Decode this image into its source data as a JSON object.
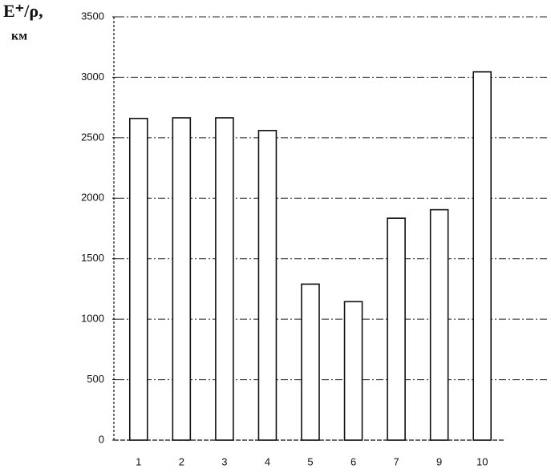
{
  "chart_data": {
    "type": "bar",
    "y_label": "E⁺/ρ,",
    "y_unit": "км",
    "categories": [
      "1",
      "2",
      "3",
      "4",
      "5",
      "6",
      "7",
      "9",
      "10"
    ],
    "values": [
      2660,
      2665,
      2665,
      2560,
      1290,
      1145,
      1835,
      1905,
      3045
    ],
    "color": "#ffffff",
    "ylim": [
      0,
      3500
    ],
    "yticks": [
      0,
      500,
      1000,
      1500,
      2000,
      2500,
      3000,
      3500
    ],
    "grid": true
  }
}
